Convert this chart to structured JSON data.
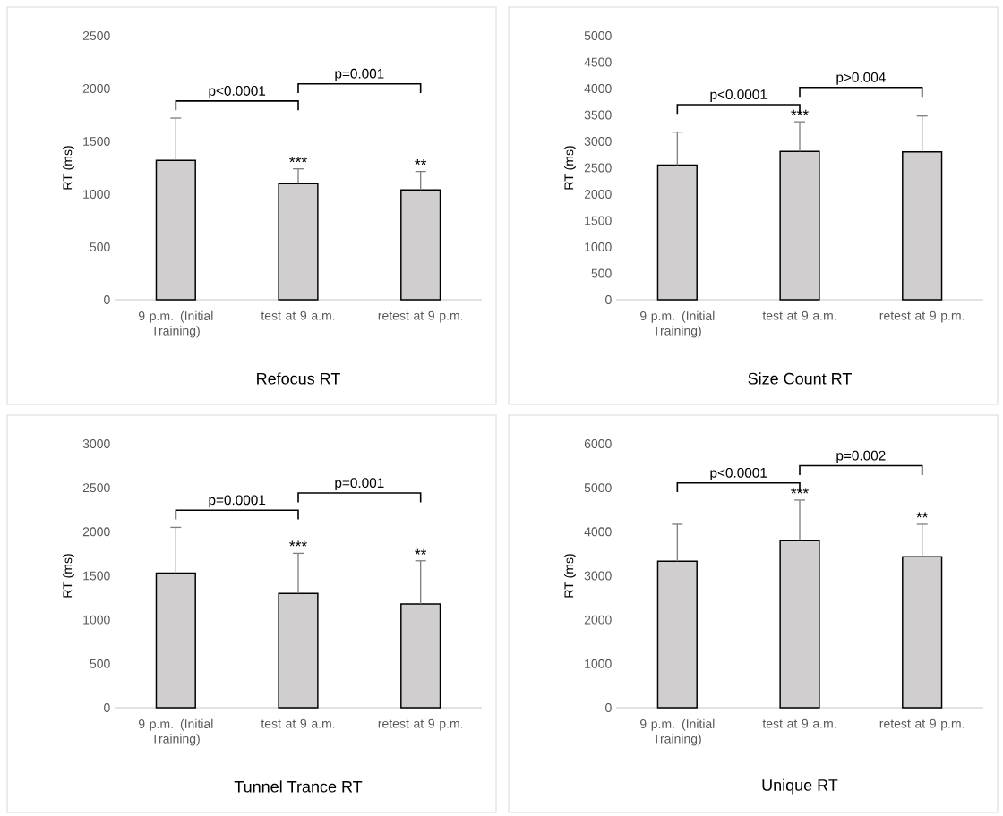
{
  "chart_data": [
    {
      "type": "bar",
      "title": "Refocus RT",
      "ylabel": "RT (ms)",
      "categories": [
        "9 p.m. (Initial Training)",
        "test at 9 a.m.",
        "retest at 9 p.m."
      ],
      "values": [
        1320,
        1100,
        1040
      ],
      "errors": [
        400,
        140,
        175
      ],
      "color": "#d0cece",
      "ylim": [
        0,
        2500
      ],
      "yticks": [
        0,
        500,
        1000,
        1500,
        2000,
        2500
      ],
      "annotations": [
        "p<0.0001",
        "p=0.001",
        {
          "text": "***",
          "x": "test at 9 a.m.",
          "y": 1240
        },
        {
          "text": "**",
          "x": "retest at 9 p.m.",
          "y": 1215
        }
      ]
    },
    {
      "type": "bar",
      "title": "Size Count RT",
      "ylabel": "RT (ms)",
      "categories": [
        "9 p.m. (Initial Training)",
        "test at 9 a.m.",
        "retest at 9 p.m."
      ],
      "values": [
        2550,
        2810,
        2800
      ],
      "errors": [
        625,
        560,
        680
      ],
      "color": "#d0cece",
      "ylim": [
        0,
        5000
      ],
      "yticks": [
        0,
        500,
        1000,
        1500,
        2000,
        2500,
        3000,
        3500,
        4000,
        4500,
        5000
      ],
      "annotations": [
        "p<0.0001",
        "p>0.004",
        {
          "text": "***",
          "x": "test at 9 a.m.",
          "y": 3370
        }
      ]
    },
    {
      "type": "bar",
      "title": "Tunnel Trance RT",
      "ylabel": "RT (ms)",
      "categories": [
        "9 p.m. (Initial Training)",
        "test at 9 a.m.",
        "retest at 9 p.m."
      ],
      "values": [
        1530,
        1300,
        1180
      ],
      "errors": [
        520,
        455,
        490
      ],
      "color": "#d0cece",
      "ylim": [
        0,
        3000
      ],
      "yticks": [
        0,
        500,
        1000,
        1500,
        2000,
        2500,
        3000
      ],
      "annotations": [
        "p=0.0001",
        "p=0.001",
        {
          "text": "***",
          "x": "test at 9 a.m.",
          "y": 1760
        },
        {
          "text": "**",
          "x": "retest at 9 p.m.",
          "y": 1665
        }
      ]
    },
    {
      "type": "bar",
      "title": "Unique RT",
      "ylabel": "RT (ms)",
      "categories": [
        "9 p.m. (Initial Training)",
        "test at 9 a.m.",
        "retest at 9 p.m."
      ],
      "values": [
        3330,
        3800,
        3430
      ],
      "errors": [
        840,
        920,
        740
      ],
      "color": "#d0cece",
      "ylim": [
        0,
        6000
      ],
      "yticks": [
        0,
        1000,
        2000,
        3000,
        4000,
        5000,
        6000
      ],
      "annotations": [
        "p<0.0001",
        "p=0.002",
        {
          "text": "***",
          "x": "test at 9 a.m.",
          "y": 4720
        },
        {
          "text": "**",
          "x": "retest at 9 p.m.",
          "y": 4170
        }
      ]
    }
  ]
}
